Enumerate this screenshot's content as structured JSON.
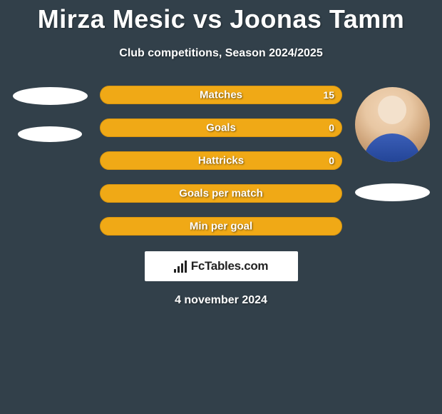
{
  "header": {
    "title": "Mirza Mesic vs Joonas Tamm",
    "subtitle": "Club competitions, Season 2024/2025"
  },
  "left_player": {
    "name": "Mirza Mesic",
    "has_photo": false
  },
  "right_player": {
    "name": "Joonas Tamm",
    "has_photo": true
  },
  "stats": [
    {
      "label": "Matches",
      "right_value": "15"
    },
    {
      "label": "Goals",
      "right_value": "0"
    },
    {
      "label": "Hattricks",
      "right_value": "0"
    },
    {
      "label": "Goals per match",
      "right_value": ""
    },
    {
      "label": "Min per goal",
      "right_value": ""
    }
  ],
  "branding": {
    "site": "FcTables.com"
  },
  "footer": {
    "date": "4 november 2024"
  },
  "style": {
    "background_color": "#32404a",
    "bar_color": "#f0a916",
    "bar_border_color": "#d8950f",
    "title_fontsize": 36,
    "subtitle_fontsize": 16,
    "stat_label_fontsize": 15,
    "ellipse_color": "#ffffff"
  }
}
